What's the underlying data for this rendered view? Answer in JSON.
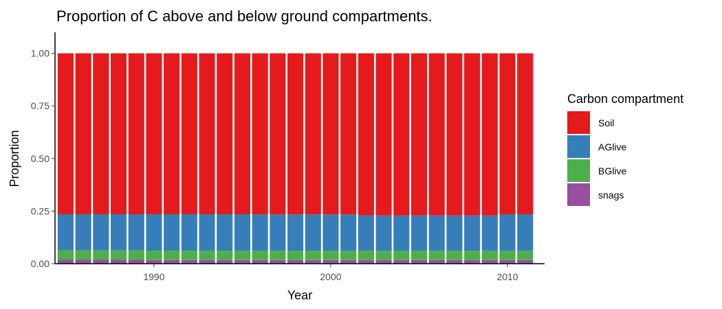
{
  "chart_data": {
    "type": "bar",
    "stacked": true,
    "title": "Proportion of C above and below ground compartments.",
    "xlabel": "Year",
    "ylabel": "Proportion",
    "ylim": [
      0,
      1.0
    ],
    "xlim": [
      1984.4,
      2012.1
    ],
    "x": [
      1985,
      1986,
      1987,
      1988,
      1989,
      1990,
      1991,
      1992,
      1993,
      1994,
      1995,
      1996,
      1997,
      1998,
      1999,
      2000,
      2001,
      2002,
      2003,
      2004,
      2005,
      2006,
      2007,
      2008,
      2009,
      2010,
      2011
    ],
    "x_ticks": [
      1990,
      2000,
      2010
    ],
    "x_tick_labels": [
      "1990",
      "2000",
      "2010"
    ],
    "y_ticks": [
      0,
      0.25,
      0.5,
      0.75,
      1.0
    ],
    "y_tick_labels": [
      "0.00",
      "0.25",
      "0.50",
      "0.75",
      "1.00"
    ],
    "legend": {
      "title": "Carbon compartment",
      "position": "right",
      "entries": [
        "Soil",
        "AGlive",
        "BGlive",
        "snags"
      ]
    },
    "grid": false,
    "series": [
      {
        "name": "snags",
        "color": "#984EA3",
        "values": [
          0.018,
          0.018,
          0.018,
          0.018,
          0.018,
          0.017,
          0.017,
          0.017,
          0.017,
          0.017,
          0.017,
          0.017,
          0.017,
          0.017,
          0.017,
          0.017,
          0.017,
          0.017,
          0.017,
          0.017,
          0.017,
          0.017,
          0.017,
          0.017,
          0.017,
          0.017,
          0.017
        ]
      },
      {
        "name": "BGlive",
        "color": "#4DAF4A",
        "values": [
          0.045,
          0.045,
          0.045,
          0.045,
          0.045,
          0.045,
          0.045,
          0.045,
          0.044,
          0.044,
          0.044,
          0.044,
          0.044,
          0.044,
          0.044,
          0.044,
          0.044,
          0.044,
          0.044,
          0.044,
          0.044,
          0.044,
          0.044,
          0.044,
          0.044,
          0.044,
          0.044
        ]
      },
      {
        "name": "AGlive",
        "color": "#377EB8",
        "values": [
          0.172,
          0.172,
          0.172,
          0.172,
          0.172,
          0.173,
          0.173,
          0.173,
          0.174,
          0.174,
          0.174,
          0.173,
          0.173,
          0.173,
          0.173,
          0.173,
          0.173,
          0.169,
          0.168,
          0.168,
          0.168,
          0.168,
          0.168,
          0.168,
          0.168,
          0.174,
          0.174
        ]
      },
      {
        "name": "Soil",
        "color": "#E41A1C",
        "values": [
          0.765,
          0.765,
          0.765,
          0.765,
          0.765,
          0.765,
          0.765,
          0.765,
          0.765,
          0.765,
          0.765,
          0.766,
          0.766,
          0.766,
          0.766,
          0.766,
          0.766,
          0.77,
          0.771,
          0.771,
          0.771,
          0.771,
          0.771,
          0.771,
          0.771,
          0.765,
          0.765
        ]
      }
    ]
  }
}
